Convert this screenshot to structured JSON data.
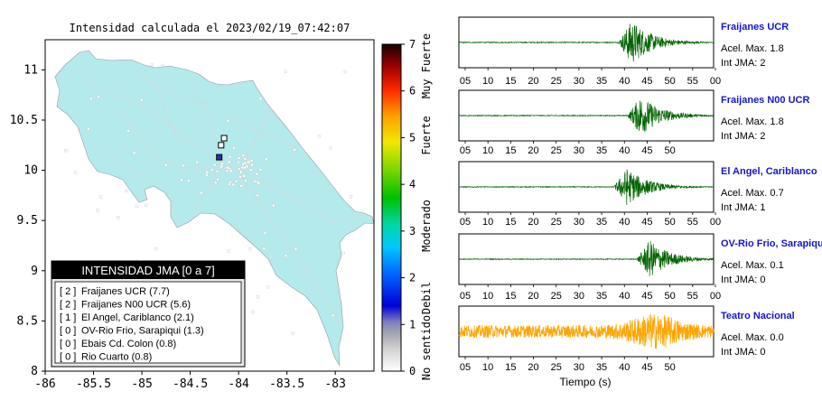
{
  "map": {
    "title": "Intensidad calculada el 2023/02/19_07:42:07",
    "x_ticks": [
      "-86",
      "-85.5",
      "-85",
      "-84.5",
      "-84",
      "-83.5",
      "-83"
    ],
    "y_ticks": [
      "11",
      "10.5",
      "10",
      "9.5",
      "9",
      "8.5",
      "8"
    ],
    "xlim": [
      -86,
      -82.6
    ],
    "ylim": [
      8,
      11.3
    ],
    "land_color": "#b4eaec",
    "legend": {
      "header": "INTENSIDAD JMA [0 a 7]",
      "items": [
        {
          "level": "[ 2 ]",
          "name": "Fraijanes UCR (7.7)"
        },
        {
          "level": "[ 2 ]",
          "name": "Fraijanes N00 UCR (5.6)"
        },
        {
          "level": "[ 1 ]",
          "name": "El Angel, Cariblanco (2.1)"
        },
        {
          "level": "[ 0 ]",
          "name": "OV-Rio Frio, Sarapiqui (1.3)"
        },
        {
          "level": "[ 0 ]",
          "name": "Ebais Cd. Colon (0.8)"
        },
        {
          "level": "[ 0 ]",
          "name": "Rio Cuarto (0.8)"
        }
      ]
    }
  },
  "colorbar": {
    "ticks": [
      "7",
      "6",
      "5",
      "4",
      "3",
      "2",
      "1",
      "0"
    ],
    "labels": [
      "Muy Fuerte",
      "Fuerte",
      "Moderado",
      "Debil",
      "No sentido"
    ],
    "range": [
      0,
      7
    ]
  },
  "traces": {
    "xlabel": "Tiempo (s)",
    "stations": [
      {
        "name": "Fraijanes UCR",
        "acel": "Acel. Max. 1.8",
        "int": "Int JMA: 2",
        "color": "#006400",
        "ticks": [
          "05",
          "10",
          "15",
          "20",
          "25",
          "30",
          "35",
          "40",
          "45",
          "50",
          "55",
          "00"
        ],
        "event_center": 40,
        "amplitude": 1.0
      },
      {
        "name": "Fraijanes N00 UCR",
        "acel": "Acel. Max. 1.8",
        "int": "Int JMA: 2",
        "color": "#006400",
        "ticks": [
          "05",
          "10",
          "15",
          "20",
          "25",
          "30",
          "35",
          "40",
          "45",
          "50"
        ],
        "event_center": 42,
        "amplitude": 0.9
      },
      {
        "name": "El Angel, Cariblanco",
        "acel": "Acel. Max. 0.7",
        "int": "Int JMA: 1",
        "color": "#006400",
        "ticks": [
          "05",
          "10",
          "15",
          "20",
          "25",
          "30",
          "35",
          "40",
          "45",
          "50",
          "55",
          "00"
        ],
        "event_center": 39,
        "amplitude": 0.85
      },
      {
        "name": "OV-Rio Frio, Sarapiqui",
        "acel": "Acel. Max. 0.1",
        "int": "Int JMA: 0",
        "color": "#006400",
        "ticks": [
          "05",
          "10",
          "15",
          "20",
          "25",
          "30",
          "35",
          "40",
          "45",
          "50",
          "55",
          "00"
        ],
        "event_center": 44,
        "amplitude": 0.85
      },
      {
        "name": "Teatro Nacional",
        "acel": "Acel. Max. 0.0",
        "int": "Int JMA: 0",
        "color": "#ffa500",
        "ticks": [
          "05",
          "10",
          "15",
          "20",
          "25",
          "30",
          "35",
          "40",
          "45",
          "50"
        ],
        "event_center": 45,
        "amplitude": 0.8
      }
    ]
  },
  "chart_data": [
    {
      "type": "scatter",
      "title": "Intensidad calculada el 2023/02/19_07:42:07",
      "xlabel": "",
      "ylabel": "",
      "xlim": [
        -86,
        -82.6
      ],
      "ylim": [
        8,
        11.3
      ],
      "series": [
        {
          "name": "",
          "x": [
            -84.15,
            -84.18,
            -84.2
          ],
          "y": [
            10.32,
            10.25,
            10.13
          ]
        }
      ]
    },
    {
      "type": "line",
      "xlabel": "Tiempo (s)",
      "series": [
        {
          "name": "Fraijanes UCR",
          "acel_max": 1.8,
          "int_jma": 2
        },
        {
          "name": "Fraijanes N00 UCR",
          "acel_max": 1.8,
          "int_jma": 2
        },
        {
          "name": "El Angel, Cariblanco",
          "acel_max": 0.7,
          "int_jma": 1
        },
        {
          "name": "OV-Rio Frio, Sarapiqui",
          "acel_max": 0.1,
          "int_jma": 0
        },
        {
          "name": "Teatro Nacional",
          "acel_max": 0.0,
          "int_jma": 0
        }
      ]
    }
  ]
}
